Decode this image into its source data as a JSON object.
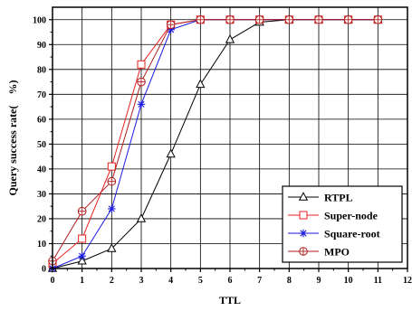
{
  "chart_data": {
    "type": "line",
    "xlabel": "TTL",
    "ylabel": "Query success rate(　%)",
    "xlim": [
      0,
      12
    ],
    "ylim": [
      0,
      105
    ],
    "x_ticks": [
      0,
      1,
      2,
      3,
      4,
      5,
      6,
      7,
      8,
      9,
      10,
      11,
      12
    ],
    "x_tick_labels": [
      "0",
      "1",
      "2",
      "3",
      "4",
      "5",
      "6",
      "7",
      "8",
      "9",
      "10",
      "11",
      "12"
    ],
    "y_ticks": [
      0,
      10,
      20,
      30,
      40,
      50,
      60,
      70,
      80,
      90,
      100
    ],
    "y_tick_labels": [
      "0",
      "10",
      "20",
      "30",
      "40",
      "50",
      "60",
      "70",
      "80",
      "90",
      "100"
    ],
    "grid": true,
    "legend_position": "bottom-right",
    "x": [
      0,
      1,
      2,
      3,
      4,
      5,
      6,
      7,
      8,
      9,
      10,
      11
    ],
    "series": [
      {
        "name": "RTPL",
        "color": "#000000",
        "marker": "triangle",
        "values": [
          0,
          3,
          8,
          20,
          46,
          74,
          92,
          99,
          100,
          100,
          100,
          100
        ]
      },
      {
        "name": "Super-node",
        "color": "#e8211f",
        "marker": "square",
        "values": [
          2,
          12,
          41,
          82,
          98,
          100,
          100,
          100,
          100,
          100,
          100,
          100
        ]
      },
      {
        "name": "Square-root",
        "color": "#1a1ae0",
        "marker": "asterisk",
        "values": [
          0,
          5,
          24,
          66,
          96,
          100,
          100,
          100,
          100,
          100,
          100,
          100
        ]
      },
      {
        "name": "MPO",
        "color": "#b01c1c",
        "marker": "circle-plus",
        "values": [
          3,
          23,
          35,
          75,
          98,
          100,
          100,
          100,
          100,
          100,
          100,
          100
        ]
      }
    ]
  }
}
